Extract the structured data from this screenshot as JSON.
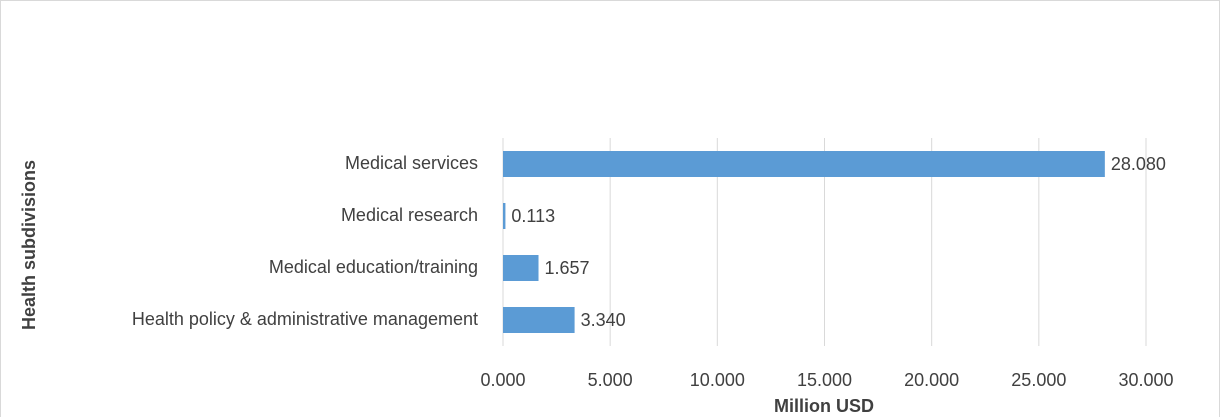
{
  "chart_data": {
    "type": "bar",
    "orientation": "horizontal",
    "categories": [
      "Medical services",
      "Medical research",
      "Medical education/training",
      "Health policy & administrative management"
    ],
    "values": [
      28.08,
      0.113,
      1.657,
      3.34
    ],
    "value_labels": [
      "28.080",
      "0.113",
      "1.657",
      "3.340"
    ],
    "color": "#5b9bd5",
    "xlabel": "Million USD",
    "ylabel": "Health subdivisions",
    "xlim": [
      0,
      30
    ],
    "xticks": [
      {
        "value": 0,
        "label": "0.000"
      },
      {
        "value": 5,
        "label": "5.000"
      },
      {
        "value": 10,
        "label": "10.000"
      },
      {
        "value": 15,
        "label": "15.000"
      },
      {
        "value": 20,
        "label": "20.000"
      },
      {
        "value": 25,
        "label": "25.000"
      },
      {
        "value": 30,
        "label": "30.000"
      }
    ],
    "grid": true
  }
}
